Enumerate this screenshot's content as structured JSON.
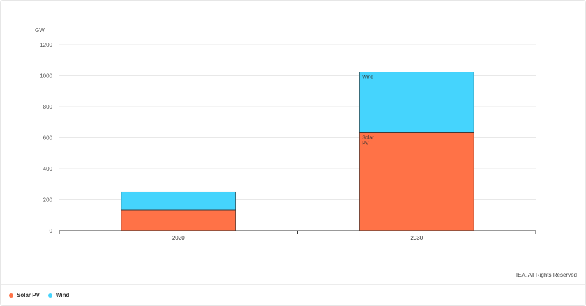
{
  "chart_data": {
    "type": "bar",
    "stacked": true,
    "unit_label": "GW",
    "categories": [
      "2020",
      "2030"
    ],
    "series": [
      {
        "name": "Solar PV",
        "color": "#ff7247",
        "values": [
          135,
          632
        ]
      },
      {
        "name": "Wind",
        "color": "#45d4fd",
        "values": [
          115,
          390
        ]
      }
    ],
    "segment_labels": {
      "category": "2030",
      "labels": [
        "Solar\nPV",
        "Wind"
      ]
    },
    "ylim": [
      0,
      1200
    ],
    "yticks": [
      0,
      200,
      400,
      600,
      800,
      1000,
      1200
    ],
    "grid": true,
    "legend_position": "bottom-left"
  },
  "copyright": "IEA. All Rights Reserved",
  "legend": [
    {
      "label": "Solar PV",
      "color": "#ff7247"
    },
    {
      "label": "Wind",
      "color": "#45d4fd"
    }
  ]
}
